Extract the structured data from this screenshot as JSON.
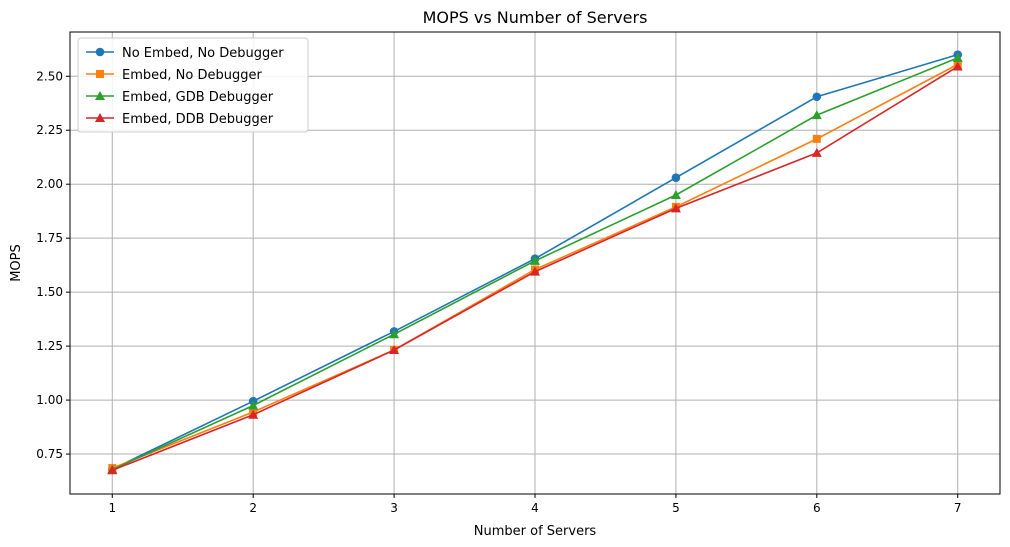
{
  "chart_data": {
    "type": "line",
    "title": "MOPS vs Number of Servers",
    "xlabel": "Number of Servers",
    "ylabel": "MOPS",
    "x": [
      1,
      2,
      3,
      4,
      5,
      6,
      7
    ],
    "xlim": [
      0.7,
      7.3
    ],
    "ylim": [
      0.565,
      2.705
    ],
    "xticks": [
      "1",
      "2",
      "3",
      "4",
      "5",
      "6",
      "7"
    ],
    "yticks": [
      "0.75",
      "1.00",
      "1.25",
      "1.50",
      "1.75",
      "2.00",
      "2.25",
      "2.50"
    ],
    "grid": true,
    "legend_position": "top-left",
    "series": [
      {
        "name": "No Embed, No Debugger",
        "color": "#1f77b4",
        "marker": "circle",
        "values": [
          0.68,
          0.995,
          1.318,
          1.655,
          2.03,
          2.405,
          2.6
        ]
      },
      {
        "name": "Embed, No Debugger",
        "color": "#ff7f0e",
        "marker": "square",
        "values": [
          0.685,
          0.945,
          1.232,
          1.605,
          1.895,
          2.21,
          2.555
        ]
      },
      {
        "name": "Embed, GDB Debugger",
        "color": "#2ca02c",
        "marker": "triangle",
        "values": [
          0.678,
          0.975,
          1.305,
          1.645,
          1.95,
          2.32,
          2.585
        ]
      },
      {
        "name": "Embed, DDB Debugger",
        "color": "#d62728",
        "marker": "triangle",
        "values": [
          0.675,
          0.932,
          1.232,
          1.595,
          1.888,
          2.145,
          2.545
        ]
      }
    ]
  }
}
